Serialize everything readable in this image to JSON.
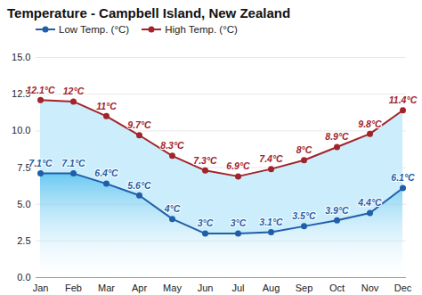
{
  "chart_data": {
    "type": "line",
    "title": "Temperature - Campbell Island, New Zealand",
    "categories": [
      "Jan",
      "Feb",
      "Mar",
      "Apr",
      "May",
      "Jun",
      "Jul",
      "Aug",
      "Sep",
      "Oct",
      "Nov",
      "Dec"
    ],
    "series": [
      {
        "name": "Low Temp. (°C)",
        "color": "#1f5ea8",
        "marker": "circle",
        "values": [
          7.1,
          7.1,
          6.4,
          5.6,
          4,
          3,
          3,
          3.1,
          3.5,
          3.9,
          4.4,
          6.1
        ],
        "value_labels": [
          "7.1°C",
          "7.1°C",
          "6.4°C",
          "5.6°C",
          "4°C",
          "3°C",
          "3°C",
          "3.1°C",
          "3.5°C",
          "3.9°C",
          "4.4°C",
          "6.1°C"
        ]
      },
      {
        "name": "High Temp. (°C)",
        "color": "#a3232a",
        "marker": "circle",
        "values": [
          12.1,
          12,
          11,
          9.7,
          8.3,
          7.3,
          6.9,
          7.4,
          8,
          8.9,
          9.8,
          11.4
        ],
        "value_labels": [
          "12.1°C",
          "12°C",
          "11°C",
          "9.7°C",
          "8.3°C",
          "7.3°C",
          "6.9°C",
          "7.4°C",
          "8°C",
          "8.9°C",
          "9.8°C",
          "11.4°C"
        ]
      }
    ],
    "ylim": [
      0,
      15
    ],
    "yticks": [
      {
        "value": 0,
        "label": "0.0"
      },
      {
        "value": 2.5,
        "label": "2.5"
      },
      {
        "value": 5,
        "label": "5.0"
      },
      {
        "value": 7.5,
        "label": "7.5"
      },
      {
        "value": 10,
        "label": "10.0"
      },
      {
        "value": 12.5,
        "label": "12.5"
      },
      {
        "value": 15,
        "label": "15.0"
      }
    ],
    "grid": true,
    "legend": "top",
    "data_labels": true
  }
}
